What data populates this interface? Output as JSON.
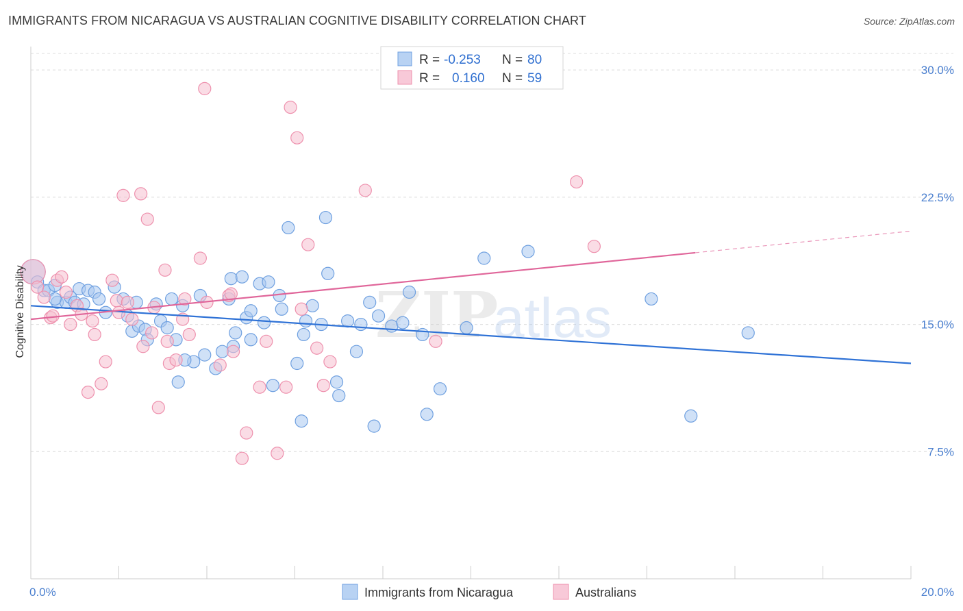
{
  "header": {
    "title": "IMMIGRANTS FROM NICARAGUA VS AUSTRALIAN COGNITIVE DISABILITY CORRELATION CHART",
    "source": "Source: ZipAtlas.com"
  },
  "legend_stats": [
    {
      "r_label": "R =",
      "r_value": "-0.253",
      "n_label": "N =",
      "n_value": "80",
      "color": "#6fa0e0"
    },
    {
      "r_label": "R =",
      "r_value": "0.160",
      "n_label": "N =",
      "n_value": "59",
      "color": "#ef8fac"
    }
  ],
  "watermark": {
    "zip": "ZIP",
    "atlas": "atlas"
  },
  "colors": {
    "blue_fill": "#a9c8f0",
    "blue_stroke": "#6fa0e0",
    "blue_line": "#2f72d6",
    "pink_fill": "#f6bfd0",
    "pink_stroke": "#ee90ad",
    "pink_line": "#e0669a",
    "grid": "#dcdcdc",
    "axis": "#cccccc",
    "tick_text": "#4a7fcf"
  },
  "chart_data": {
    "type": "scatter",
    "title": "IMMIGRANTS FROM NICARAGUA VS AUSTRALIAN COGNITIVE DISABILITY CORRELATION CHART",
    "xlabel": "",
    "ylabel": "Cognitive Disability",
    "xlim": [
      0,
      20
    ],
    "ylim": [
      0,
      31.5
    ],
    "x_tick_labels": [
      "0.0%",
      "20.0%"
    ],
    "y_ticks": [
      7.5,
      15.0,
      22.5,
      30.0
    ],
    "y_tick_labels": [
      "7.5%",
      "15.0%",
      "22.5%",
      "30.0%"
    ],
    "grid": true,
    "legend_position": "bottom",
    "series": [
      {
        "name": "Immigrants from Nicaragua",
        "color": "#6fa0e0",
        "trend": {
          "x": [
            0,
            20
          ],
          "y": [
            16.1,
            12.7
          ],
          "dashed_from": null
        },
        "points": [
          [
            0.05,
            18.1
          ],
          [
            0.15,
            17.5
          ],
          [
            0.3,
            17.0
          ],
          [
            0.4,
            17.0
          ],
          [
            0.55,
            17.3
          ],
          [
            0.6,
            16.3
          ],
          [
            0.8,
            16.3
          ],
          [
            0.9,
            16.6
          ],
          [
            1.0,
            16.3
          ],
          [
            1.1,
            17.1
          ],
          [
            1.3,
            17.0
          ],
          [
            1.45,
            16.9
          ],
          [
            1.55,
            16.5
          ],
          [
            1.7,
            15.7
          ],
          [
            1.9,
            17.2
          ],
          [
            2.1,
            16.5
          ],
          [
            2.2,
            15.5
          ],
          [
            2.3,
            14.6
          ],
          [
            2.45,
            14.9
          ],
          [
            2.6,
            14.7
          ],
          [
            2.65,
            14.1
          ],
          [
            2.85,
            16.2
          ],
          [
            2.95,
            15.2
          ],
          [
            3.1,
            14.8
          ],
          [
            3.2,
            16.5
          ],
          [
            3.3,
            14.1
          ],
          [
            3.35,
            11.6
          ],
          [
            3.45,
            16.1
          ],
          [
            3.7,
            12.8
          ],
          [
            3.85,
            16.7
          ],
          [
            3.95,
            13.2
          ],
          [
            4.2,
            12.4
          ],
          [
            4.35,
            13.4
          ],
          [
            4.5,
            16.5
          ],
          [
            4.55,
            17.7
          ],
          [
            4.65,
            14.5
          ],
          [
            4.8,
            17.8
          ],
          [
            4.9,
            15.4
          ],
          [
            5.0,
            14.1
          ],
          [
            5.2,
            17.4
          ],
          [
            5.3,
            15.1
          ],
          [
            5.4,
            17.5
          ],
          [
            5.5,
            11.4
          ],
          [
            5.65,
            16.7
          ],
          [
            5.7,
            15.9
          ],
          [
            5.85,
            20.7
          ],
          [
            6.05,
            12.7
          ],
          [
            6.2,
            14.4
          ],
          [
            6.15,
            9.3
          ],
          [
            6.25,
            15.2
          ],
          [
            6.6,
            15.0
          ],
          [
            6.7,
            21.3
          ],
          [
            6.75,
            18.0
          ],
          [
            6.95,
            11.6
          ],
          [
            7.0,
            10.8
          ],
          [
            7.2,
            15.2
          ],
          [
            7.4,
            13.4
          ],
          [
            7.5,
            15.0
          ],
          [
            7.7,
            16.3
          ],
          [
            7.8,
            9.0
          ],
          [
            8.2,
            14.9
          ],
          [
            8.45,
            15.1
          ],
          [
            8.6,
            16.9
          ],
          [
            8.9,
            14.4
          ],
          [
            9.0,
            9.7
          ],
          [
            9.3,
            11.2
          ],
          [
            9.9,
            14.8
          ],
          [
            10.3,
            18.9
          ],
          [
            11.3,
            19.3
          ],
          [
            14.1,
            16.5
          ],
          [
            15.0,
            9.6
          ],
          [
            16.3,
            14.5
          ],
          [
            0.55,
            16.5
          ],
          [
            1.2,
            16.2
          ],
          [
            2.4,
            16.3
          ],
          [
            3.5,
            12.9
          ],
          [
            4.6,
            13.7
          ],
          [
            5.0,
            15.8
          ],
          [
            6.4,
            16.1
          ],
          [
            7.9,
            15.5
          ]
        ]
      },
      {
        "name": "Australians",
        "color": "#ee90ad",
        "trend": {
          "x": [
            0,
            20
          ],
          "y": [
            15.3,
            20.5
          ],
          "dashed_from": 15.1
        },
        "points": [
          [
            0.05,
            18.1
          ],
          [
            0.15,
            17.2
          ],
          [
            0.3,
            16.6
          ],
          [
            0.45,
            15.4
          ],
          [
            0.5,
            15.5
          ],
          [
            0.6,
            17.6
          ],
          [
            0.7,
            17.8
          ],
          [
            0.8,
            16.9
          ],
          [
            0.9,
            15.0
          ],
          [
            1.05,
            16.1
          ],
          [
            1.15,
            15.6
          ],
          [
            1.3,
            11.0
          ],
          [
            1.4,
            15.2
          ],
          [
            1.45,
            14.4
          ],
          [
            1.6,
            11.5
          ],
          [
            1.7,
            12.8
          ],
          [
            1.85,
            17.6
          ],
          [
            1.95,
            16.4
          ],
          [
            2.0,
            15.7
          ],
          [
            2.1,
            22.6
          ],
          [
            2.2,
            16.3
          ],
          [
            2.3,
            15.3
          ],
          [
            2.5,
            22.7
          ],
          [
            2.55,
            13.7
          ],
          [
            2.65,
            21.2
          ],
          [
            2.75,
            14.5
          ],
          [
            2.8,
            16.0
          ],
          [
            2.9,
            10.1
          ],
          [
            3.05,
            18.2
          ],
          [
            3.1,
            14.0
          ],
          [
            3.15,
            12.7
          ],
          [
            3.3,
            12.9
          ],
          [
            3.45,
            15.3
          ],
          [
            3.5,
            16.5
          ],
          [
            3.6,
            14.4
          ],
          [
            3.85,
            18.9
          ],
          [
            3.95,
            28.9
          ],
          [
            4.0,
            16.3
          ],
          [
            4.3,
            12.6
          ],
          [
            4.5,
            16.7
          ],
          [
            4.55,
            16.8
          ],
          [
            4.6,
            13.4
          ],
          [
            4.8,
            7.1
          ],
          [
            4.9,
            8.6
          ],
          [
            5.2,
            11.3
          ],
          [
            5.35,
            14.0
          ],
          [
            5.6,
            7.4
          ],
          [
            5.8,
            11.3
          ],
          [
            5.9,
            27.8
          ],
          [
            6.05,
            26.0
          ],
          [
            6.15,
            15.9
          ],
          [
            6.3,
            19.7
          ],
          [
            6.5,
            13.6
          ],
          [
            6.65,
            11.4
          ],
          [
            6.8,
            12.8
          ],
          [
            7.6,
            22.9
          ],
          [
            9.2,
            14.0
          ],
          [
            12.4,
            23.4
          ],
          [
            12.8,
            19.6
          ]
        ]
      }
    ]
  },
  "bottom_legend": [
    {
      "label": "Immigrants from Nicaragua",
      "color": "#a9c8f0"
    },
    {
      "label": "Australians",
      "color": "#f6bfd0"
    }
  ]
}
